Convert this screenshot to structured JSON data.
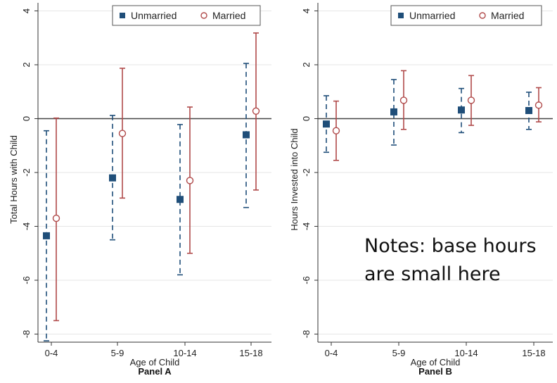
{
  "colors": {
    "unmarried": "#1f4e79",
    "married": "#b04a4a",
    "grid": "#e6e6e6",
    "zero": "#444444",
    "axis": "#333333"
  },
  "note": {
    "line1": "Notes: base hours",
    "line2": "are small here"
  },
  "chart_data": [
    {
      "type": "scatter",
      "panel": "Panel A",
      "xlabel": "Age of Child",
      "ylabel": "Total Hours with Child",
      "categories": [
        "0-4",
        "5-9",
        "10-14",
        "15-18"
      ],
      "ylim": [
        -8.3,
        4.3
      ],
      "yticks": [
        4,
        2,
        0,
        -2,
        -4,
        -6,
        -8
      ],
      "ytick_labels": [
        "4",
        "2",
        "0",
        "-2",
        "-4",
        "-6",
        "-8"
      ],
      "grid": true,
      "legend": "top-right",
      "series": [
        {
          "name": "Unmarried",
          "marker": "square",
          "style": "dashed",
          "values": [
            -4.35,
            -2.2,
            -3.0,
            -0.6
          ],
          "lower": [
            -8.25,
            -4.5,
            -5.8,
            -3.3
          ],
          "upper": [
            -0.45,
            0.12,
            -0.22,
            2.05
          ]
        },
        {
          "name": "Married",
          "marker": "circle",
          "style": "solid",
          "values": [
            -3.7,
            -0.55,
            -2.3,
            0.28
          ],
          "lower": [
            -7.5,
            -2.95,
            -5.0,
            -2.65
          ],
          "upper": [
            0.02,
            1.87,
            0.43,
            3.18
          ]
        }
      ]
    },
    {
      "type": "scatter",
      "panel": "Panel B",
      "xlabel": "Age of Child",
      "ylabel": "Hours Invested into Child",
      "categories": [
        "0-4",
        "5-9",
        "10-14",
        "15-18"
      ],
      "ylim": [
        -8.3,
        4.3
      ],
      "yticks": [
        4,
        2,
        0,
        -2,
        -4,
        -6,
        -8
      ],
      "ytick_labels": [
        "4",
        "2",
        "0",
        "-2",
        "-4",
        "-6",
        "-8"
      ],
      "grid": true,
      "legend": "top-right",
      "series": [
        {
          "name": "Unmarried",
          "marker": "square",
          "style": "dashed",
          "values": [
            -0.2,
            0.25,
            0.32,
            0.3
          ],
          "lower": [
            -1.25,
            -0.98,
            -0.52,
            -0.4
          ],
          "upper": [
            0.85,
            1.45,
            1.12,
            0.98
          ]
        },
        {
          "name": "Married",
          "marker": "circle",
          "style": "solid",
          "values": [
            -0.45,
            0.68,
            0.68,
            0.5
          ],
          "lower": [
            -1.55,
            -0.4,
            -0.25,
            -0.12
          ],
          "upper": [
            0.65,
            1.78,
            1.6,
            1.15
          ]
        }
      ]
    }
  ]
}
